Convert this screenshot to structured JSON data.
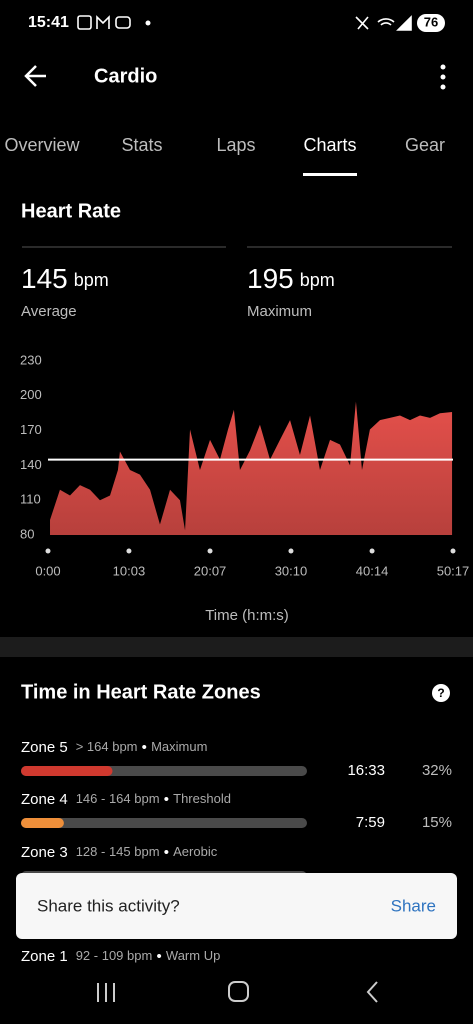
{
  "status_bar": {
    "time": "15:41",
    "battery": "76"
  },
  "header": {
    "title": "Cardio"
  },
  "tabs": [
    {
      "label": "Overview",
      "selected": false
    },
    {
      "label": "Stats",
      "selected": false
    },
    {
      "label": "Laps",
      "selected": false
    },
    {
      "label": "Charts",
      "selected": true
    },
    {
      "label": "Gear",
      "selected": false
    }
  ],
  "heart_rate": {
    "title": "Heart Rate",
    "stats": [
      {
        "value": 145,
        "unit": "bpm",
        "label": "Average"
      },
      {
        "value": 195,
        "unit": "bpm",
        "label": "Maximum"
      }
    ]
  },
  "chart_data": {
    "type": "area",
    "color": "#e5504b",
    "line_color": "#ffffff",
    "x_label": "Time (h:m:s)",
    "x": [
      15,
      89,
      164,
      238,
      313,
      387,
      462,
      521,
      536,
      611,
      685,
      760,
      834,
      909,
      983,
      1021,
      1058,
      1132,
      1207,
      1281,
      1341,
      1385,
      1430,
      1505,
      1579,
      1654,
      1728,
      1803,
      1877,
      1952,
      2026,
      2101,
      2175,
      2250,
      2294,
      2339,
      2398,
      2473,
      2547,
      2622,
      2697,
      2771,
      2846,
      2920,
      3010
    ],
    "values": [
      93,
      119,
      114,
      123,
      119,
      110,
      114,
      136,
      152,
      136,
      132,
      119,
      89,
      119,
      110,
      84,
      171,
      136,
      162,
      145,
      171,
      188,
      136,
      153,
      175,
      145,
      162,
      179,
      149,
      183,
      136,
      162,
      158,
      140,
      195,
      136,
      171,
      179,
      181,
      183,
      179,
      183,
      181,
      185,
      186
    ],
    "xlim": [
      0,
      3017
    ],
    "ylim": [
      80,
      230
    ],
    "xticks": [
      {
        "value": 0,
        "label": "0:00"
      },
      {
        "value": 603,
        "label": "10:03"
      },
      {
        "value": 1207,
        "label": "20:07"
      },
      {
        "value": 1810,
        "label": "30:10"
      },
      {
        "value": 2414,
        "label": "40:14"
      },
      {
        "value": 3017,
        "label": "50:17"
      }
    ],
    "yticks": [
      80,
      110,
      140,
      170,
      200,
      230
    ]
  },
  "zones": {
    "title": "Time in Heart Rate Zones",
    "items": [
      {
        "name": "Zone 5",
        "range": "> 164 bpm",
        "label": "Maximum",
        "time": "16:33",
        "percent": 32,
        "percent_label": "32%",
        "color": "#d0392f"
      },
      {
        "name": "Zone 4",
        "range": "146 - 164 bpm",
        "label": "Threshold",
        "time": "7:59",
        "percent": 15,
        "percent_label": "15%",
        "color": "#ef8f3a"
      },
      {
        "name": "Zone 3",
        "range": "128 - 145 bpm",
        "label": "Aerobic",
        "color": "#7bc043"
      },
      {
        "name": "Zone 1",
        "range": "92 - 109 bpm",
        "label": "Warm Up"
      }
    ]
  },
  "snackbar": {
    "message": "Share this activity?",
    "action": "Share"
  }
}
